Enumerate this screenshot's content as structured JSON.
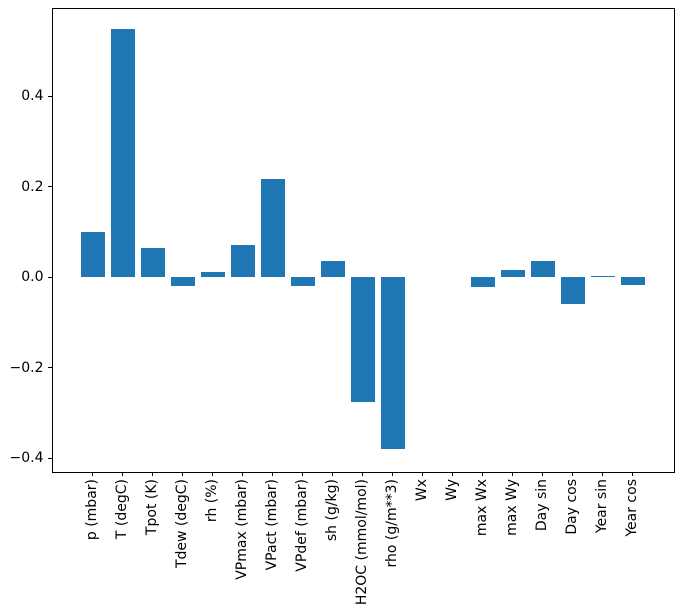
{
  "figure": {
    "background": "#ffffff",
    "spine_color": "#000000",
    "text_color": "#000000"
  },
  "chart_data": {
    "type": "bar",
    "title": "",
    "xlabel": "",
    "ylabel": "",
    "grid": false,
    "legend_position": "none",
    "bar_color": "#1f77b4",
    "x_tick_rotation": 90,
    "ylim": [
      -0.4295,
      0.5966
    ],
    "categories": [
      "p (mbar)",
      "T (degC)",
      "Tpot (K)",
      "Tdew (degC)",
      "rh (%)",
      "VPmax (mbar)",
      "VPact (mbar)",
      "VPdef (mbar)",
      "sh (g/kg)",
      "H2OC (mmol/mol)",
      "rho (g/m**3)",
      "Wx",
      "Wy",
      "max Wx",
      "max Wy",
      "Day sin",
      "Day cos",
      "Year sin",
      "Year cos"
    ],
    "values": [
      0.1,
      0.548,
      0.065,
      -0.02,
      0.011,
      0.071,
      0.218,
      -0.02,
      0.035,
      -0.275,
      -0.38,
      0.0,
      0.0,
      -0.021,
      0.016,
      0.035,
      -0.06,
      0.003,
      -0.018
    ],
    "yticks": [
      {
        "value": 0.4,
        "label": "0.4"
      },
      {
        "value": 0.2,
        "label": "0.2"
      },
      {
        "value": 0.0,
        "label": "0.0"
      },
      {
        "value": -0.2,
        "label": "−0.2"
      },
      {
        "value": -0.4,
        "label": "−0.4"
      }
    ]
  }
}
